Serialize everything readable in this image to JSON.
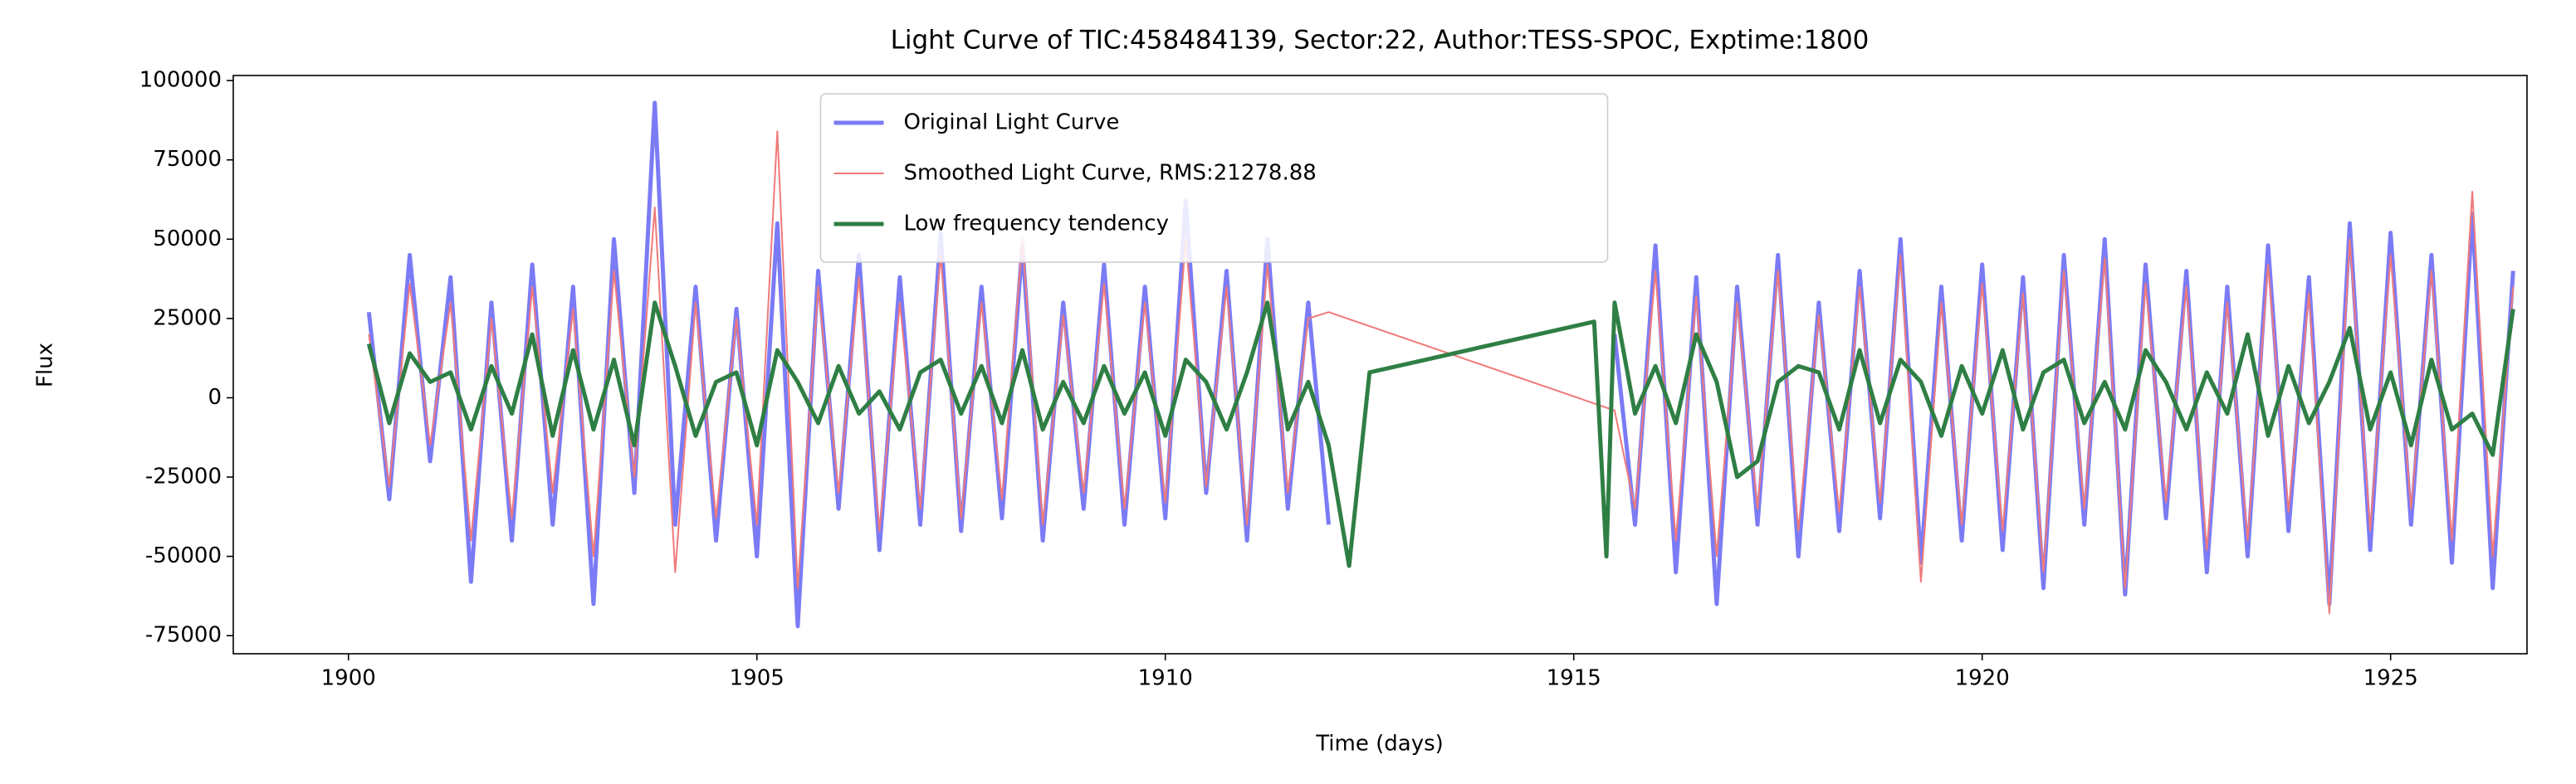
{
  "chart_data": {
    "type": "line",
    "title": "Light Curve of TIC:458484139, Sector:22, Author:TESS-SPOC, Exptime:1800",
    "xlabel": "Time (days)",
    "ylabel": "Flux",
    "xlim": [
      1898.59,
      1926.67
    ],
    "ylim": [
      -80700,
      101600
    ],
    "xticks": [
      1900,
      1905,
      1910,
      1915,
      1920,
      1925
    ],
    "yticks": [
      -75000,
      -50000,
      -25000,
      0,
      25000,
      50000,
      75000,
      100000
    ],
    "grid": false,
    "legend": "upper center",
    "series": [
      {
        "name": "Original Light Curve",
        "color": "#7b7bf6",
        "linewidth": 5,
        "x": [
          1900.25,
          1900.5,
          1900.75,
          1901,
          1901.25,
          1901.5,
          1901.75,
          1902,
          1902.25,
          1902.5,
          1902.75,
          1903,
          1903.25,
          1903.5,
          1903.75,
          1904,
          1904.25,
          1904.5,
          1904.75,
          1905,
          1905.25,
          1905.5,
          1905.75,
          1906,
          1906.25,
          1906.5,
          1906.75,
          1907,
          1907.25,
          1907.5,
          1907.75,
          1908,
          1908.25,
          1908.5,
          1908.75,
          1909,
          1909.25,
          1909.5,
          1909.75,
          1910,
          1910.25,
          1910.5,
          1910.75,
          1911,
          1911.25,
          1911.5,
          1911.75,
          1912,
          1913.75,
          1915.5,
          1915.75,
          1916,
          1916.25,
          1916.5,
          1916.75,
          1917,
          1917.25,
          1917.5,
          1917.75,
          1918,
          1918.25,
          1918.5,
          1918.75,
          1919,
          1919.25,
          1919.5,
          1919.75,
          1920,
          1920.25,
          1920.5,
          1920.75,
          1921,
          1921.25,
          1921.5,
          1921.75,
          1922,
          1922.25,
          1922.5,
          1922.75,
          1923,
          1923.25,
          1923.5,
          1923.75,
          1924,
          1924.25,
          1924.5,
          1924.75,
          1925,
          1925.25,
          1925.5,
          1925.75,
          1926,
          1926.25,
          1926.5
        ],
        "values": [
          27000,
          -32000,
          45000,
          -20000,
          38000,
          -58000,
          30000,
          -45000,
          42000,
          -40000,
          35000,
          -65000,
          50000,
          -30000,
          93000,
          -40000,
          35000,
          -45000,
          28000,
          -50000,
          55000,
          -72000,
          40000,
          -35000,
          45000,
          -48000,
          38000,
          -40000,
          52000,
          -42000,
          35000,
          -38000,
          48000,
          -45000,
          30000,
          -35000,
          42000,
          -40000,
          35000,
          -38000,
          62000,
          -30000,
          40000,
          -45000,
          50000,
          -35000,
          30000,
          -40000,
          null,
          20000,
          -40000,
          48000,
          -55000,
          38000,
          -65000,
          35000,
          -40000,
          45000,
          -50000,
          30000,
          -42000,
          40000,
          -38000,
          50000,
          -52000,
          35000,
          -45000,
          42000,
          -48000,
          38000,
          -60000,
          45000,
          -40000,
          50000,
          -62000,
          42000,
          -38000,
          40000,
          -55000,
          35000,
          -50000,
          48000,
          -42000,
          38000,
          -65000,
          55000,
          -48000,
          52000,
          -40000,
          45000,
          -52000,
          58000,
          -60000,
          40000
        ]
      },
      {
        "name": "Smoothed Light Curve, RMS:21278.88",
        "color": "#f07a7a",
        "linewidth": 2,
        "x": [
          1900.25,
          1900.5,
          1900.75,
          1901,
          1901.25,
          1901.5,
          1901.75,
          1902,
          1902.25,
          1902.5,
          1902.75,
          1903,
          1903.25,
          1903.5,
          1903.75,
          1904,
          1904.25,
          1904.5,
          1904.75,
          1905,
          1905.25,
          1905.5,
          1905.75,
          1906,
          1906.25,
          1906.5,
          1906.75,
          1907,
          1907.25,
          1907.5,
          1907.75,
          1908,
          1908.25,
          1908.5,
          1908.75,
          1909,
          1909.25,
          1909.5,
          1909.75,
          1910,
          1910.25,
          1910.5,
          1910.75,
          1911,
          1911.25,
          1911.5,
          1911.75,
          1912,
          1915.5,
          1915.75,
          1916,
          1916.25,
          1916.5,
          1916.75,
          1917,
          1917.25,
          1917.5,
          1917.75,
          1918,
          1918.25,
          1918.5,
          1918.75,
          1919,
          1919.25,
          1919.5,
          1919.75,
          1920,
          1920.25,
          1920.5,
          1920.75,
          1921,
          1921.25,
          1921.5,
          1921.75,
          1922,
          1922.25,
          1922.5,
          1922.75,
          1923,
          1923.25,
          1923.5,
          1923.75,
          1924,
          1924.25,
          1924.5,
          1924.75,
          1925,
          1925.25,
          1925.5,
          1925.75,
          1926,
          1926.25,
          1926.5
        ],
        "values": [
          20000,
          -28000,
          36000,
          -15000,
          30000,
          -45000,
          25000,
          -38000,
          35000,
          -30000,
          28000,
          -50000,
          40000,
          -25000,
          60000,
          -55000,
          30000,
          -38000,
          25000,
          -40000,
          84000,
          -60000,
          35000,
          -30000,
          38000,
          -42000,
          30000,
          -35000,
          45000,
          -38000,
          30000,
          -32000,
          50000,
          -40000,
          26000,
          -30000,
          36000,
          -35000,
          30000,
          -33000,
          50000,
          -28000,
          35000,
          -40000,
          42000,
          -30000,
          25000,
          27000,
          -4000,
          -35000,
          40000,
          -45000,
          32000,
          -50000,
          30000,
          -35000,
          40000,
          -42000,
          26000,
          -36000,
          35000,
          -33000,
          45000,
          -58000,
          30000,
          -40000,
          36000,
          -42000,
          33000,
          -55000,
          40000,
          -35000,
          44000,
          -60000,
          36000,
          -33000,
          35000,
          -48000,
          30000,
          -45000,
          42000,
          -36000,
          33000,
          -68000,
          50000,
          -42000,
          45000,
          -35000,
          40000,
          -45000,
          65000,
          -50000,
          35000
        ]
      },
      {
        "name": "Low frequency tendency",
        "color": "#2f7f45",
        "linewidth": 5,
        "x": [
          1900.25,
          1900.5,
          1900.75,
          1901,
          1901.25,
          1901.5,
          1901.75,
          1902,
          1902.25,
          1902.5,
          1902.75,
          1903,
          1903.25,
          1903.5,
          1903.75,
          1904,
          1904.25,
          1904.5,
          1904.75,
          1905,
          1905.25,
          1905.5,
          1905.75,
          1906,
          1906.25,
          1906.5,
          1906.75,
          1907,
          1907.25,
          1907.5,
          1907.75,
          1908,
          1908.25,
          1908.5,
          1908.75,
          1909,
          1909.25,
          1909.5,
          1909.75,
          1910,
          1910.25,
          1910.5,
          1910.75,
          1911,
          1911.25,
          1911.5,
          1911.75,
          1912,
          1912.25,
          1912.5,
          1915.25,
          1915.4,
          1915.5,
          1915.75,
          1916,
          1916.25,
          1916.5,
          1916.75,
          1917,
          1917.25,
          1917.5,
          1917.75,
          1918,
          1918.25,
          1918.5,
          1918.75,
          1919,
          1919.25,
          1919.5,
          1919.75,
          1920,
          1920.25,
          1920.5,
          1920.75,
          1921,
          1921.25,
          1921.5,
          1921.75,
          1922,
          1922.25,
          1922.5,
          1922.75,
          1923,
          1923.25,
          1923.5,
          1923.75,
          1924,
          1924.25,
          1924.5,
          1924.75,
          1925,
          1925.25,
          1925.5,
          1925.75,
          1926,
          1926.25,
          1926.5
        ],
        "values": [
          17000,
          -8000,
          14000,
          5000,
          8000,
          -10000,
          10000,
          -5000,
          20000,
          -12000,
          15000,
          -10000,
          12000,
          -15000,
          30000,
          10000,
          -12000,
          5000,
          8000,
          -15000,
          15000,
          5000,
          -8000,
          10000,
          -5000,
          2000,
          -10000,
          8000,
          12000,
          -5000,
          10000,
          -8000,
          15000,
          -10000,
          5000,
          -8000,
          10000,
          -5000,
          8000,
          -12000,
          12000,
          5000,
          -10000,
          8000,
          30000,
          -10000,
          5000,
          -15000,
          -53000,
          8000,
          24000,
          -50000,
          30000,
          -5000,
          10000,
          -8000,
          20000,
          5000,
          -25000,
          -20000,
          5000,
          10000,
          8000,
          -10000,
          15000,
          -8000,
          12000,
          5000,
          -12000,
          10000,
          -5000,
          15000,
          -10000,
          8000,
          12000,
          -8000,
          5000,
          -10000,
          15000,
          5000,
          -10000,
          8000,
          -5000,
          20000,
          -12000,
          10000,
          -8000,
          5000,
          22000,
          -10000,
          8000,
          -15000,
          12000,
          -10000,
          -5000,
          -18000,
          28000
        ]
      }
    ]
  }
}
